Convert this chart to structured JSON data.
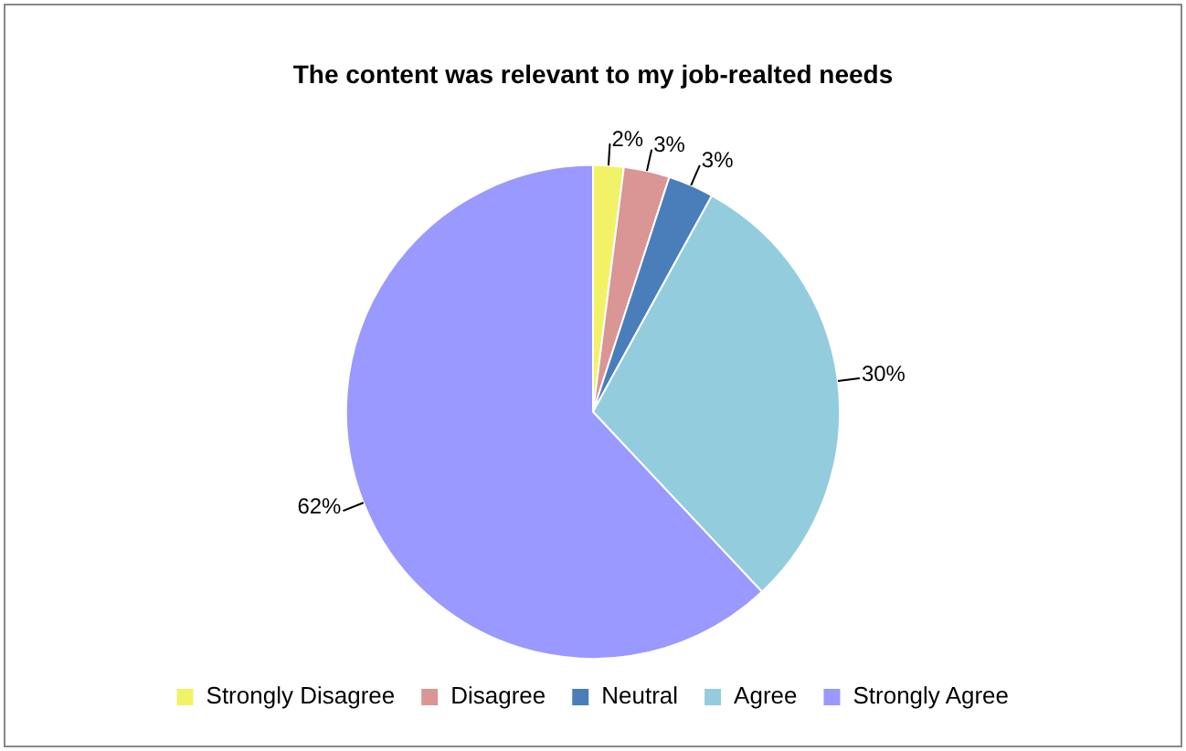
{
  "chart_data": {
    "type": "pie",
    "title": "The content was relevant to my job-realted needs",
    "categories": [
      "Strongly Disagree",
      "Disagree",
      "Neutral",
      "Agree",
      "Strongly Agree"
    ],
    "values": [
      2,
      3,
      3,
      30,
      62
    ],
    "colors": [
      "#f2f266",
      "#d99694",
      "#4a7ebb",
      "#93cddd",
      "#9999ff"
    ],
    "value_labels": [
      "2%",
      "3%",
      "3%",
      "30%",
      "62%"
    ],
    "legend": "bottom"
  }
}
